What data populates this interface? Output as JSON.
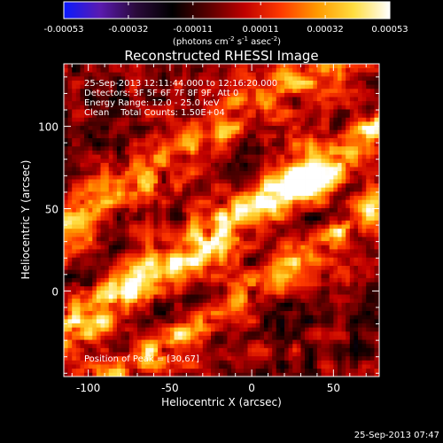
{
  "colorbar": {
    "tick_labels": [
      "-0.00053",
      "-0.00032",
      "-0.00011",
      "0.00011",
      "0.00032",
      "0.00053"
    ],
    "ticks": [
      -0.00053,
      -0.00032,
      -0.00011,
      0.00011,
      0.00032,
      0.00053
    ],
    "range": [
      -0.00053,
      0.00053
    ],
    "unit_main": "(photons cm",
    "unit_exp1": "-2",
    "unit_mid1": " s",
    "unit_exp2": "-1",
    "unit_mid2": " asec",
    "unit_exp3": "-2",
    "unit_end": ")",
    "colors": [
      "#0a1aff",
      "#5a1ab0",
      "#2a0a3a",
      "#000000",
      "#5a0000",
      "#c00000",
      "#ff3a00",
      "#ff9a00",
      "#ffdd40",
      "#ffffff"
    ]
  },
  "chart_data": {
    "type": "heatmap",
    "title": "Reconstructed RHESSI Image",
    "xlabel": "Heliocentric X (arcsec)",
    "ylabel": "Heliocentric Y (arcsec)",
    "xlim": [
      -115,
      78
    ],
    "ylim": [
      -52,
      138
    ],
    "x_ticks": [
      -100,
      -50,
      0,
      50
    ],
    "y_ticks": [
      0,
      50,
      100
    ],
    "x_tick_labels": [
      "-100",
      "-50",
      "0",
      "50"
    ],
    "y_tick_labels": [
      "0",
      "50",
      "100"
    ],
    "peak": [
      30,
      67
    ],
    "annotations": [
      "25-Sep-2013 12:11:44.000 to 12:16:20.000",
      "Detectors: 3F 5F 6F 7F 8F 9F, Att 0",
      "Energy Range: 12.0 - 25.0 keV",
      "Clean    Total Counts: 1.50E+04"
    ],
    "peak_label": "Position of Peak = [30,67]",
    "colormap": "blue-purple-black-red-yellow-white"
  },
  "footer": {
    "timestamp": "25-Sep-2013 07:47"
  }
}
